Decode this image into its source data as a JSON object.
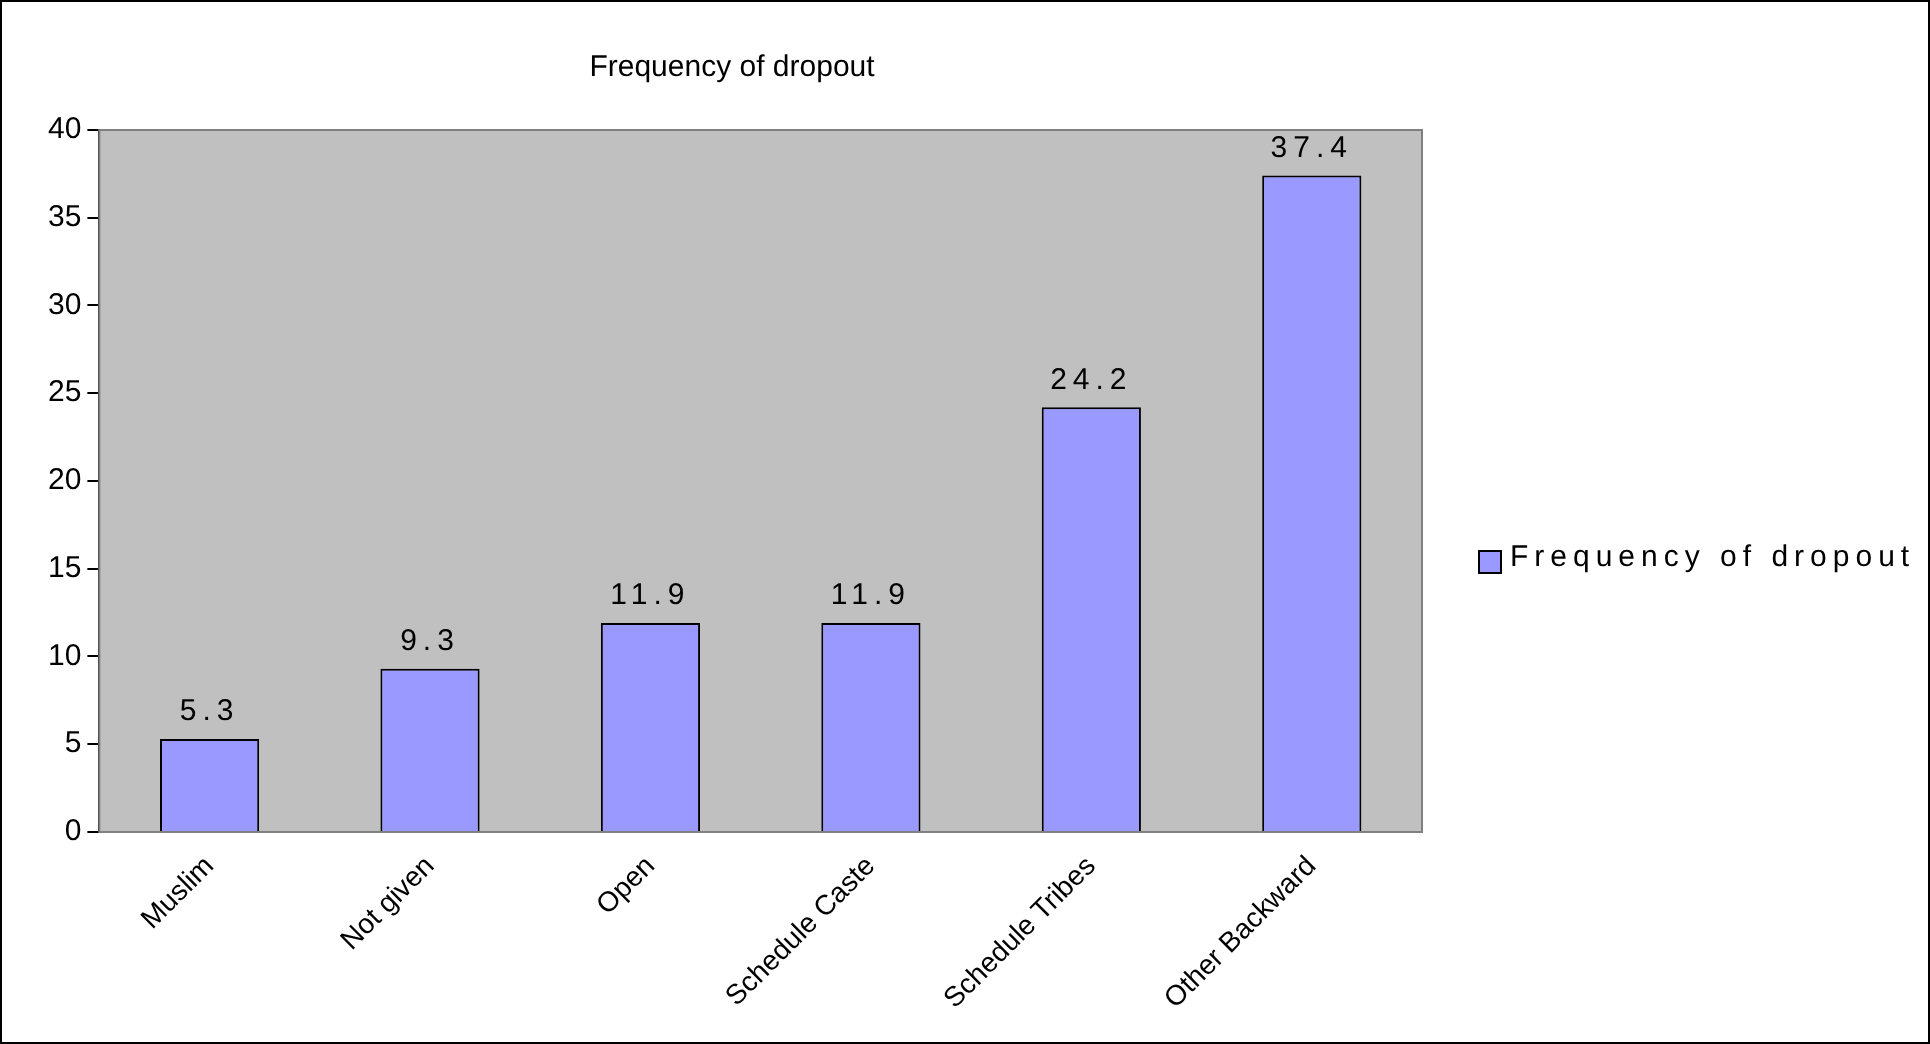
{
  "chart_data": {
    "type": "bar",
    "title": "Frequency of dropout",
    "categories": [
      "Muslim",
      "Not given",
      "Open",
      "Schedule Caste",
      "Schedule Tribes",
      "Other Backward"
    ],
    "series": [
      {
        "name": "Frequency of dropout",
        "color": "#9999ff",
        "values": [
          5.3,
          9.3,
          11.9,
          11.9,
          24.2,
          37.4
        ]
      }
    ],
    "ylim": [
      0,
      40
    ],
    "yticks": [
      0,
      5,
      10,
      15,
      20,
      25,
      30,
      35,
      40
    ],
    "grid": false,
    "legend": "right",
    "data_labels": true
  }
}
